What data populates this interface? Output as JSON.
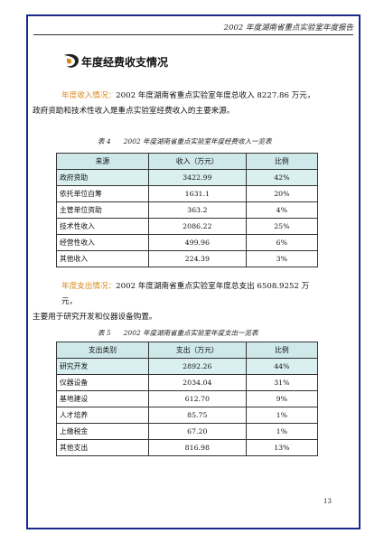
{
  "header": {
    "running_title": "2002 年度湖南省重点实验室年度报告"
  },
  "section": {
    "title": "年度经费收支情况"
  },
  "income_para": {
    "lead": "年度收入情况：",
    "line1": "2002 年度湖南省重点实验室年度总收入 8227.86 万元，",
    "line2": "政府资助和技术性收入是重点实验室经费收入的主要来源。"
  },
  "table4": {
    "caption_num": "表 4",
    "caption_title": "2002 年度湖南省重点实验室年度经费收入一览表",
    "headers": [
      "来源",
      "收入（万元）",
      "比例"
    ],
    "rows": [
      [
        "政府资助",
        "3422.99",
        "42%"
      ],
      [
        "依托单位自筹",
        "1631.1",
        "20%"
      ],
      [
        "主管单位资助",
        "363.2",
        "4%"
      ],
      [
        "技术性收入",
        "2086.22",
        "25%"
      ],
      [
        "经营性收入",
        "499.96",
        "6%"
      ],
      [
        "其他收入",
        "224.39",
        "3%"
      ]
    ]
  },
  "expense_para": {
    "lead": "年度支出情况：",
    "line1": "2002 年度湖南省重点实验室年度总支出 6508.9252 万元，",
    "line2": "主要用于研究开发和仪器设备购置。"
  },
  "table5": {
    "caption_num": "表 5",
    "caption_title": "2002 年度湖南省重点实验室年度支出一览表",
    "headers": [
      "支出类别",
      "支出（万元）",
      "比例"
    ],
    "rows": [
      [
        "研究开发",
        "2892.26",
        "44%"
      ],
      [
        "仪器设备",
        "2034.04",
        "31%"
      ],
      [
        "基地建设",
        "612.70",
        "9%"
      ],
      [
        "人才培养",
        "85.75",
        "1%"
      ],
      [
        "上缴税金",
        "67.20",
        "1%"
      ],
      [
        "其他支出",
        "816.98",
        "13%"
      ]
    ]
  },
  "footer": {
    "page_number": "13"
  },
  "colors": {
    "frame": "#1a2a8a",
    "lead_text": "#d98a1a",
    "header_fill": "#cfe8ea",
    "highlight_fill": "#d9eff0"
  }
}
